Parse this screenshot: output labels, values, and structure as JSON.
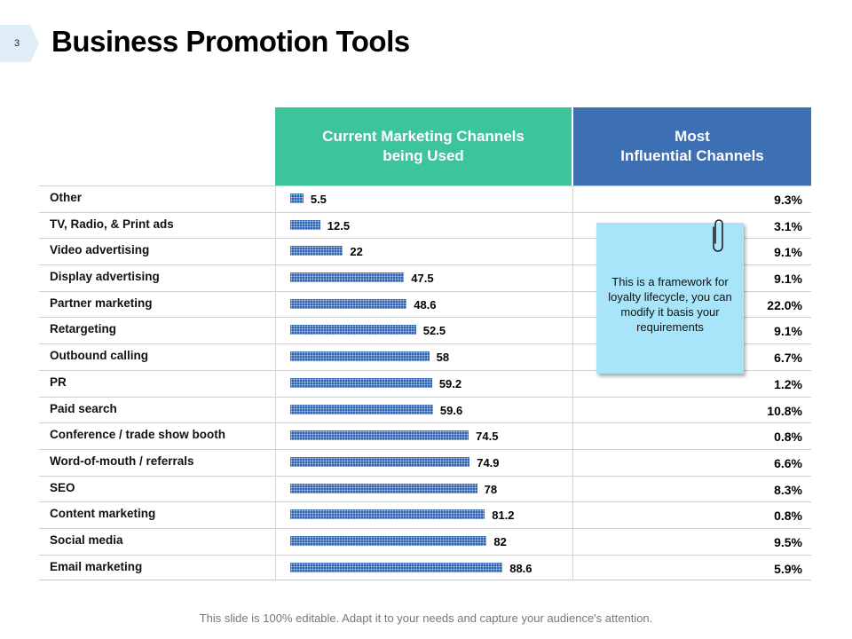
{
  "slide": {
    "number": "3",
    "title": "Business Promotion Tools"
  },
  "headers": {
    "current_line1": "Current Marketing Channels",
    "current_line2": "being Used",
    "influential_line1": "Most",
    "influential_line2": "Influential Channels"
  },
  "note": {
    "text": "This is a framework for loyalty lifecycle, you can modify it basis your requirements"
  },
  "footer": {
    "text": "This slide is 100% editable. Adapt it to your needs and capture your audience's attention."
  },
  "colors": {
    "bar": "#2f64b3",
    "current_header": "#3cc49c",
    "influential_header": "#3d6fb5",
    "note": "#a8e5fb"
  },
  "chart_data": {
    "type": "bar",
    "orientation": "horizontal",
    "title": "Business Promotion Tools",
    "categories": [
      "Other",
      "TV, Radio, & Print ads",
      "Video advertising",
      "Display advertising",
      "Partner marketing",
      "Retargeting",
      "Outbound calling",
      "PR",
      "Paid search",
      "Conference / trade show booth",
      "Word-of-mouth / referrals",
      "SEO",
      "Content marketing",
      "Social media",
      "Email marketing"
    ],
    "series": [
      {
        "name": "Current Marketing Channels being Used",
        "values": [
          5.5,
          12.5,
          22,
          47.5,
          48.6,
          52.5,
          58,
          59.2,
          59.6,
          74.5,
          74.9,
          78,
          81.2,
          82,
          88.6
        ],
        "labels": [
          "5.5",
          "12.5",
          "22",
          "47.5",
          "48.6",
          "52.5",
          "58",
          "59.2",
          "59.6",
          "74.5",
          "74.9",
          "78",
          "81.2",
          "82",
          "88.6"
        ]
      },
      {
        "name": "Most Influential Channels",
        "values": [
          9.3,
          3.1,
          9.1,
          9.1,
          22.0,
          9.1,
          6.7,
          1.2,
          10.8,
          0.8,
          6.6,
          8.3,
          0.8,
          9.5,
          5.9
        ],
        "labels": [
          "9.3%",
          "3.1%",
          "9.1%",
          "9.1%",
          "22.0%",
          "9.1%",
          "6.7%",
          "1.2%",
          "10.8%",
          "0.8%",
          "6.6%",
          "8.3%",
          "0.8%",
          "9.5%",
          "5.9%"
        ]
      }
    ],
    "xlim": [
      0,
      100
    ]
  }
}
